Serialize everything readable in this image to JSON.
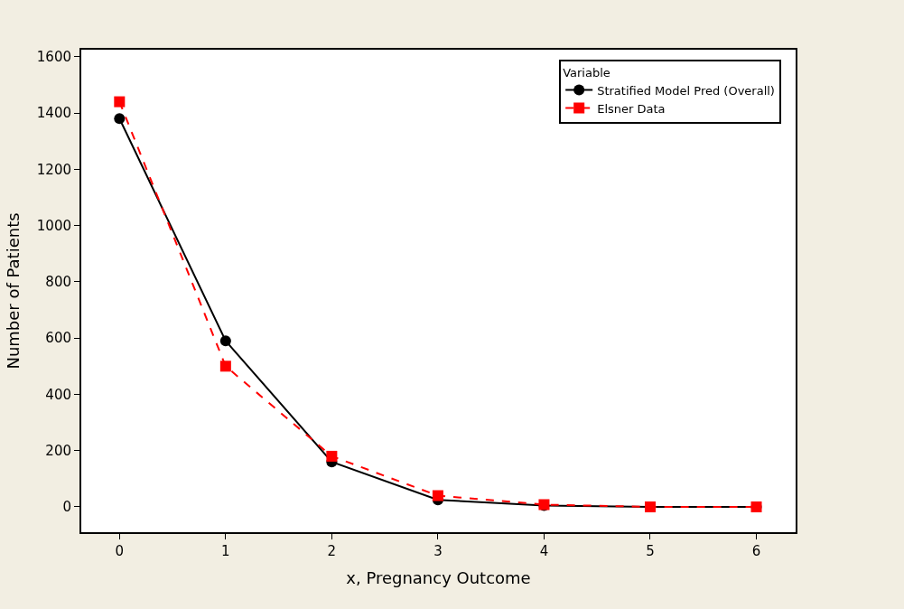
{
  "chart_data": {
    "type": "line",
    "xlabel": "x, Pregnancy Outcome",
    "ylabel": "Number of Patients",
    "legend_title": "Variable",
    "legend": "top right",
    "x": [
      0,
      1,
      2,
      3,
      4,
      5,
      6
    ],
    "series": [
      {
        "name": "Stratified Model Pred (Overall)",
        "color": "#000000",
        "marker": "circle",
        "line_style": "solid",
        "values": [
          1380,
          590,
          160,
          25,
          5,
          0,
          0
        ]
      },
      {
        "name": "Elsner Data",
        "color": "#ff0000",
        "marker": "square",
        "line_style": "dashed",
        "values": [
          1440,
          500,
          180,
          40,
          8,
          0,
          0
        ]
      }
    ],
    "xlim": [
      -0.36,
      6.37
    ],
    "ylim": [
      -90,
      1625
    ],
    "xticks": [
      0,
      1,
      2,
      3,
      4,
      5,
      6
    ],
    "yticks": [
      0,
      200,
      400,
      600,
      800,
      1000,
      1200,
      1400,
      1600
    ]
  }
}
